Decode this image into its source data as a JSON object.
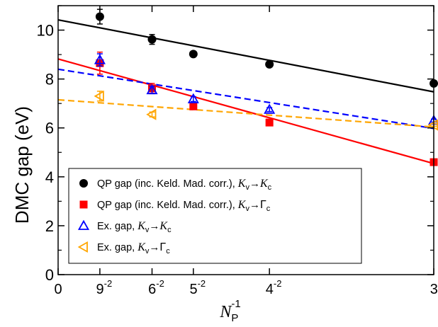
{
  "chart_data": {
    "type": "scatter",
    "xlabel": "N",
    "xlabel_sub": "P",
    "xlabel_sup": "-1",
    "ylabel": "DMC gap (eV)",
    "xlim": [
      0,
      0.1111
    ],
    "ylim": [
      0,
      11
    ],
    "x_ticks": [
      {
        "base": "0",
        "exp": ""
      },
      {
        "base": "9",
        "exp": "-2",
        "value": 0.012346
      },
      {
        "base": "6",
        "exp": "-2",
        "value": 0.027778
      },
      {
        "base": "5",
        "exp": "-2",
        "value": 0.04
      },
      {
        "base": "4",
        "exp": "-2",
        "value": 0.0625
      },
      {
        "base": "3",
        "exp": "-2",
        "value": 0.111111
      }
    ],
    "y_ticks": [
      "0",
      "2",
      "4",
      "6",
      "8",
      "10"
    ],
    "series": [
      {
        "name": "QP gap (inc. Keld. Mad. corr.), ",
        "name_math": [
          "K",
          "v",
          "K",
          "c"
        ],
        "marker": "circle",
        "color": "#000000",
        "x": [
          0.012346,
          0.027778,
          0.04,
          0.0625,
          0.111111
        ],
        "y": [
          10.55,
          9.62,
          9.02,
          8.6,
          7.82
        ],
        "err": [
          0.3,
          0.2,
          0.1,
          0.1,
          0.08
        ],
        "fit": {
          "intercept": 10.42,
          "slope": -26.5,
          "style": "solid"
        }
      },
      {
        "name": "QP gap (inc. Keld. Mad. corr.), ",
        "name_math": [
          "K",
          "v",
          "Γ",
          "c"
        ],
        "marker": "square",
        "color": "#ff0000",
        "x": [
          0.012346,
          0.027778,
          0.04,
          0.0625,
          0.111111
        ],
        "y": [
          8.65,
          7.62,
          6.88,
          6.22,
          4.6
        ],
        "err": [
          0.45,
          0.2,
          0.1,
          0.08,
          0.06
        ],
        "fit": {
          "intercept": 8.82,
          "slope": -38.5,
          "style": "solid"
        }
      },
      {
        "name": "Ex. gap, ",
        "name_math": [
          "K",
          "v",
          "K",
          "c"
        ],
        "marker": "triangle-up",
        "color": "#0000ff",
        "x": [
          0.012346,
          0.027778,
          0.04,
          0.0625,
          0.111111
        ],
        "y": [
          8.78,
          7.55,
          7.18,
          6.75,
          6.3
        ],
        "err": [
          0.25,
          0.15,
          0.1,
          0.08,
          0.06
        ],
        "fit": {
          "intercept": 8.4,
          "slope": -21.8,
          "style": "dashed"
        }
      },
      {
        "name": "Ex. gap, ",
        "name_math": [
          "K",
          "v",
          "Γ",
          "c"
        ],
        "marker": "triangle-left",
        "color": "#ffa500",
        "x": [
          0.012346,
          0.027778,
          0.111111
        ],
        "y": [
          7.3,
          6.55,
          6.12
        ],
        "err": [
          0.2,
          0.1,
          0.05
        ],
        "fit": {
          "intercept": 7.15,
          "slope": -10.0,
          "style": "dashed"
        }
      }
    ]
  }
}
